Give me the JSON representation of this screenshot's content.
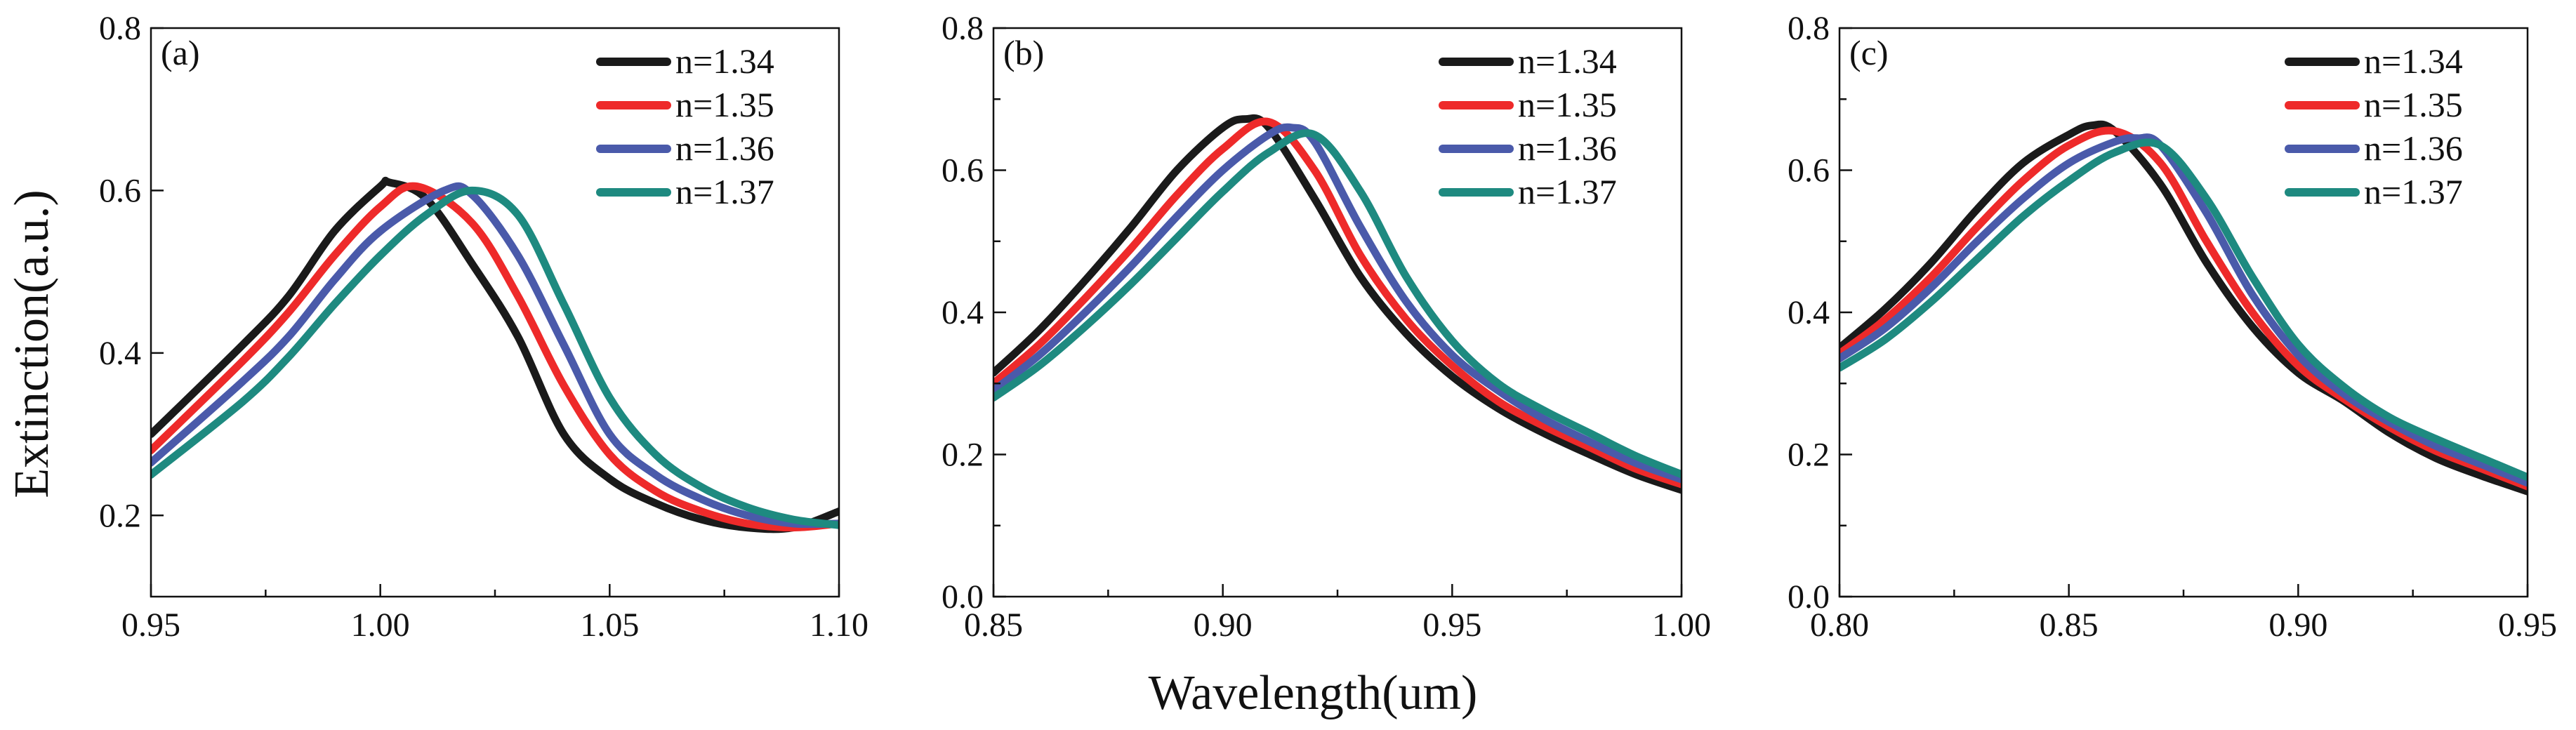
{
  "figure": {
    "ylabel": "Extinction(a.u.)",
    "xlabel": "Wavelength(um)"
  },
  "chart_data": [
    {
      "type": "line",
      "panel_label": "(a)",
      "xlim": [
        0.95,
        1.1
      ],
      "ylim": [
        0.1,
        0.8
      ],
      "xticks": [
        0.95,
        1.0,
        1.05,
        1.1
      ],
      "xtick_labels": [
        "0.95",
        "1.00",
        "1.05",
        "1.10"
      ],
      "yticks": [
        0.2,
        0.4,
        0.6,
        0.8
      ],
      "ytick_labels": [
        "0.2",
        "0.4",
        "0.6",
        "0.8"
      ],
      "legend_position": "top-right",
      "series": [
        {
          "name": "n=1.34",
          "color": "#1a1a1a",
          "x": [
            0.95,
            0.97,
            0.98,
            0.99,
            1.0,
            1.002,
            1.01,
            1.02,
            1.03,
            1.04,
            1.05,
            1.06,
            1.07,
            1.08,
            1.09,
            1.1
          ],
          "y": [
            0.3,
            0.41,
            0.47,
            0.55,
            0.605,
            0.61,
            0.59,
            0.51,
            0.42,
            0.3,
            0.245,
            0.215,
            0.195,
            0.185,
            0.185,
            0.205
          ]
        },
        {
          "name": "n=1.35",
          "color": "#ee2a2a",
          "x": [
            0.95,
            0.97,
            0.98,
            0.99,
            1.0,
            1.008,
            1.02,
            1.03,
            1.04,
            1.05,
            1.06,
            1.07,
            1.08,
            1.09,
            1.1
          ],
          "y": [
            0.28,
            0.39,
            0.45,
            0.52,
            0.58,
            0.605,
            0.56,
            0.47,
            0.36,
            0.275,
            0.23,
            0.205,
            0.19,
            0.185,
            0.19
          ]
        },
        {
          "name": "n=1.36",
          "color": "#4a5aaa",
          "x": [
            0.95,
            0.97,
            0.98,
            0.99,
            1.0,
            1.014,
            1.02,
            1.03,
            1.04,
            1.05,
            1.06,
            1.07,
            1.08,
            1.09,
            1.1
          ],
          "y": [
            0.265,
            0.365,
            0.42,
            0.49,
            0.55,
            0.6,
            0.595,
            0.52,
            0.41,
            0.3,
            0.25,
            0.22,
            0.2,
            0.19,
            0.19
          ]
        },
        {
          "name": "n=1.37",
          "color": "#1e8a80",
          "x": [
            0.95,
            0.97,
            0.98,
            0.99,
            1.0,
            1.01,
            1.02,
            1.03,
            1.04,
            1.05,
            1.06,
            1.07,
            1.08,
            1.09,
            1.1
          ],
          "y": [
            0.25,
            0.34,
            0.395,
            0.46,
            0.52,
            0.57,
            0.6,
            0.57,
            0.46,
            0.345,
            0.275,
            0.235,
            0.21,
            0.195,
            0.188
          ]
        }
      ]
    },
    {
      "type": "line",
      "panel_label": "(b)",
      "xlim": [
        0.85,
        1.0
      ],
      "ylim": [
        0.0,
        0.8
      ],
      "xticks": [
        0.85,
        0.9,
        0.95,
        1.0
      ],
      "xtick_labels": [
        "0.85",
        "0.90",
        "0.95",
        "1.00"
      ],
      "yticks": [
        0.0,
        0.2,
        0.4,
        0.6,
        0.8
      ],
      "ytick_labels": [
        "0.0",
        "0.2",
        "0.4",
        "0.6",
        "0.8"
      ],
      "legend_position": "top-right",
      "series": [
        {
          "name": "n=1.34",
          "color": "#1a1a1a",
          "x": [
            0.85,
            0.86,
            0.87,
            0.88,
            0.89,
            0.9,
            0.905,
            0.91,
            0.92,
            0.93,
            0.94,
            0.95,
            0.96,
            0.97,
            0.98,
            0.99,
            1.0
          ],
          "y": [
            0.315,
            0.375,
            0.445,
            0.52,
            0.6,
            0.66,
            0.672,
            0.66,
            0.56,
            0.45,
            0.37,
            0.31,
            0.265,
            0.23,
            0.2,
            0.172,
            0.15
          ]
        },
        {
          "name": "n=1.35",
          "color": "#ee2a2a",
          "x": [
            0.85,
            0.86,
            0.87,
            0.88,
            0.89,
            0.9,
            0.91,
            0.92,
            0.93,
            0.94,
            0.95,
            0.96,
            0.97,
            0.98,
            0.99,
            1.0
          ],
          "y": [
            0.3,
            0.355,
            0.42,
            0.49,
            0.565,
            0.63,
            0.668,
            0.6,
            0.48,
            0.39,
            0.325,
            0.275,
            0.24,
            0.21,
            0.18,
            0.158
          ]
        },
        {
          "name": "n=1.36",
          "color": "#4a5aaa",
          "x": [
            0.85,
            0.86,
            0.87,
            0.88,
            0.89,
            0.9,
            0.91,
            0.915,
            0.92,
            0.93,
            0.94,
            0.95,
            0.96,
            0.97,
            0.98,
            0.99,
            1.0
          ],
          "y": [
            0.29,
            0.34,
            0.4,
            0.465,
            0.535,
            0.6,
            0.65,
            0.66,
            0.64,
            0.52,
            0.415,
            0.34,
            0.29,
            0.25,
            0.218,
            0.188,
            0.165
          ]
        },
        {
          "name": "n=1.37",
          "color": "#1e8a80",
          "x": [
            0.85,
            0.86,
            0.87,
            0.88,
            0.89,
            0.9,
            0.91,
            0.92,
            0.93,
            0.94,
            0.95,
            0.96,
            0.97,
            0.98,
            0.99,
            1.0
          ],
          "y": [
            0.28,
            0.325,
            0.38,
            0.44,
            0.505,
            0.57,
            0.625,
            0.65,
            0.57,
            0.45,
            0.36,
            0.3,
            0.262,
            0.23,
            0.198,
            0.172
          ]
        }
      ]
    },
    {
      "type": "line",
      "panel_label": "(c)",
      "xlim": [
        0.8,
        0.95
      ],
      "ylim": [
        0.0,
        0.8
      ],
      "xticks": [
        0.8,
        0.85,
        0.9,
        0.95
      ],
      "xtick_labels": [
        "0.80",
        "0.85",
        "0.90",
        "0.95"
      ],
      "yticks": [
        0.0,
        0.2,
        0.4,
        0.6,
        0.8
      ],
      "ytick_labels": [
        "0.0",
        "0.2",
        "0.4",
        "0.6",
        "0.8"
      ],
      "legend_position": "top-right",
      "series": [
        {
          "name": "n=1.34",
          "color": "#1a1a1a",
          "x": [
            0.8,
            0.81,
            0.82,
            0.83,
            0.84,
            0.85,
            0.855,
            0.86,
            0.87,
            0.88,
            0.89,
            0.9,
            0.91,
            0.92,
            0.93,
            0.94,
            0.95
          ],
          "y": [
            0.35,
            0.405,
            0.47,
            0.545,
            0.61,
            0.65,
            0.663,
            0.655,
            0.58,
            0.47,
            0.38,
            0.315,
            0.275,
            0.23,
            0.195,
            0.17,
            0.148
          ]
        },
        {
          "name": "n=1.35",
          "color": "#ee2a2a",
          "x": [
            0.8,
            0.81,
            0.82,
            0.83,
            0.84,
            0.85,
            0.86,
            0.87,
            0.88,
            0.89,
            0.9,
            0.91,
            0.92,
            0.93,
            0.94,
            0.95
          ],
          "y": [
            0.342,
            0.39,
            0.45,
            0.52,
            0.585,
            0.635,
            0.655,
            0.61,
            0.5,
            0.4,
            0.325,
            0.278,
            0.238,
            0.205,
            0.18,
            0.155
          ]
        },
        {
          "name": "n=1.36",
          "color": "#4a5aaa",
          "x": [
            0.8,
            0.81,
            0.82,
            0.83,
            0.84,
            0.85,
            0.86,
            0.865,
            0.87,
            0.88,
            0.89,
            0.9,
            0.91,
            0.92,
            0.93,
            0.94,
            0.95
          ],
          "y": [
            0.335,
            0.378,
            0.435,
            0.5,
            0.56,
            0.61,
            0.64,
            0.645,
            0.635,
            0.54,
            0.425,
            0.34,
            0.285,
            0.245,
            0.212,
            0.186,
            0.16
          ]
        },
        {
          "name": "n=1.37",
          "color": "#1e8a80",
          "x": [
            0.8,
            0.81,
            0.82,
            0.83,
            0.84,
            0.85,
            0.86,
            0.87,
            0.88,
            0.89,
            0.9,
            0.91,
            0.92,
            0.93,
            0.94,
            0.95
          ],
          "y": [
            0.322,
            0.362,
            0.415,
            0.475,
            0.535,
            0.585,
            0.625,
            0.635,
            0.56,
            0.45,
            0.355,
            0.295,
            0.252,
            0.222,
            0.195,
            0.168
          ]
        }
      ]
    }
  ]
}
